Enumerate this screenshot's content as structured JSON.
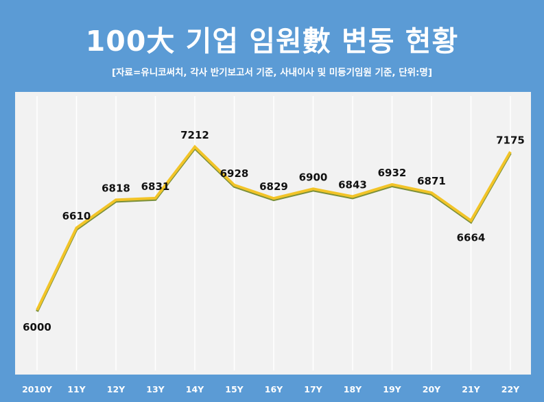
{
  "chart_data": {
    "type": "line",
    "title": "100大 기업 임원數 변동 현황",
    "subtitle": "[자료=유니코써치, 각사 반기보고서 기준, 사내이사 및 미등기임원 기준, 단위:명]",
    "categories": [
      "2010Y",
      "11Y",
      "12Y",
      "13Y",
      "14Y",
      "15Y",
      "16Y",
      "17Y",
      "18Y",
      "19Y",
      "20Y",
      "21Y",
      "22Y"
    ],
    "series": [
      {
        "values": [
          6000,
          6610,
          6818,
          6831,
          7212,
          6928,
          6829,
          6900,
          6843,
          6932,
          6871,
          6664,
          7175
        ]
      }
    ],
    "data_labels": [
      "6000",
      "6610",
      "6818",
      "6831",
      "7212",
      "6928",
      "6829",
      "6900",
      "6843",
      "6932",
      "6871",
      "6664",
      "7175"
    ],
    "xlabel": "",
    "ylabel": "",
    "grid": "vertical",
    "legend": "none",
    "colors": {
      "background": "#5b9bd5",
      "plot_area": "#f2f2f2",
      "line": "#f2c428",
      "line_shadow": "#7a8f3a",
      "gridline": "#ffffff"
    }
  }
}
